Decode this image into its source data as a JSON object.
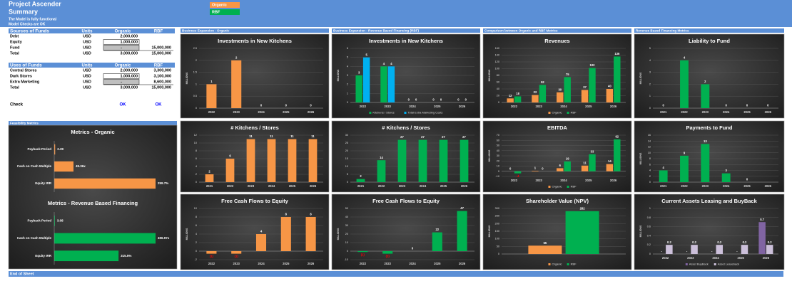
{
  "header": {
    "title": "Project Ascender",
    "subtitle": "Summary",
    "status": "The Model is fully functional",
    "checks": "Model Checks are OK"
  },
  "legend": [
    {
      "name": "Organic",
      "color": "#f79646"
    },
    {
      "name": "RBF",
      "color": "#00b050"
    }
  ],
  "sources": {
    "header": [
      "Sources of Funds",
      "Units",
      "Organic",
      "RBF"
    ],
    "rows": [
      [
        "Debt",
        "USD",
        "2,000,000",
        null
      ],
      [
        "Equity",
        "USD",
        "1,000,000",
        null
      ],
      [
        "Fund",
        "USD",
        "-",
        "15,000,000"
      ],
      [
        "Total",
        "USD",
        "3,000,000",
        "15,000,000"
      ]
    ]
  },
  "uses": {
    "header": [
      "Uses of Funds",
      "Units",
      "Organic",
      "RBF"
    ],
    "rows": [
      [
        "Central Stores",
        "USD",
        "2,000,000",
        "3,300,000"
      ],
      [
        "Dark Stores",
        "USD",
        "1,000,000",
        "3,100,000"
      ],
      [
        "Extra Marketing",
        "USD",
        "-",
        "8,600,000"
      ],
      [
        "Total",
        "USD",
        "3,000,000",
        "15,000,000"
      ]
    ]
  },
  "check": [
    "Check",
    "OK",
    "OK"
  ],
  "sections": [
    "Business Expansion - Organic",
    "Business Expansion - Revenue Based Financing (RBF)",
    "Comparison between Organic and RBF Metrics",
    "Revenue Based Financing Metrics",
    "Feasibility Metrics"
  ],
  "footer": "End of Sheet",
  "chart_data": [
    {
      "type": "bar",
      "title": "Investments in New Kitchens",
      "ylabel": "MILLIONS",
      "categories": [
        "2022",
        "2023",
        "2024",
        "2025",
        "2026"
      ],
      "values": [
        1,
        2,
        0,
        0,
        0
      ],
      "color": "#f79646",
      "ylim": [
        0,
        2.5
      ],
      "yticks": [
        0,
        0.5,
        1,
        1.5,
        2,
        2.5
      ],
      "grid": true
    },
    {
      "type": "bar",
      "title": "Investments in New Kitchens",
      "ylabel": "MILLIONS",
      "categories": [
        "2022",
        "2023",
        "2024",
        "2025",
        "2026"
      ],
      "series": [
        {
          "name": "Kitchens / Stores",
          "color": "#00b050",
          "values": [
            3,
            4,
            0,
            0,
            0
          ]
        },
        {
          "name": "Total Extra Marketing Costs",
          "color": "#00b0f0",
          "values": [
            5,
            4,
            0,
            0,
            0
          ]
        }
      ],
      "legend": "bottom",
      "ylim": [
        0,
        6
      ],
      "yticks": [
        0,
        1,
        2,
        3,
        4,
        5,
        6
      ],
      "grid": true
    },
    {
      "type": "bar",
      "title": "Revenues",
      "ylabel": "MILLIONS",
      "categories": [
        "2022",
        "2023",
        "2024",
        "2025",
        "2026"
      ],
      "series": [
        {
          "name": "Organic",
          "color": "#f79646",
          "values": [
            12,
            22,
            30,
            37,
            40
          ]
        },
        {
          "name": "RBF",
          "color": "#00b050",
          "values": [
            18,
            52,
            75,
            102,
            136
          ]
        }
      ],
      "legend": "bottom",
      "ylim": [
        0,
        160
      ],
      "yticks": [
        0,
        20,
        40,
        60,
        80,
        100,
        120,
        140,
        160
      ],
      "grid": true
    },
    {
      "type": "bar",
      "title": "Liability to Fund",
      "ylabel": "MILLIONS",
      "categories": [
        "2021",
        "2022",
        "2023",
        "2024",
        "2025",
        "2026"
      ],
      "values": [
        0,
        4,
        2,
        0,
        0,
        0
      ],
      "color": "#00b050",
      "ylim": [
        0,
        5
      ],
      "yticks": [
        0,
        1,
        2,
        3,
        4,
        5
      ],
      "grid": true
    },
    {
      "type": "bar",
      "title": "# Kitchens / Stores",
      "categories": [
        "2021",
        "2022",
        "2023",
        "2024",
        "2025",
        "2026"
      ],
      "values": [
        2,
        6,
        11,
        11,
        11,
        11
      ],
      "color": "#f79646",
      "ylim": [
        0,
        12
      ],
      "yticks": [
        0,
        2,
        4,
        6,
        8,
        10,
        12
      ],
      "grid": true
    },
    {
      "type": "bar",
      "title": "# Kitchens / Stores",
      "categories": [
        "2021",
        "2022",
        "2023",
        "2024",
        "2025",
        "2026"
      ],
      "values": [
        2,
        14,
        27,
        27,
        27,
        27
      ],
      "color": "#00b050",
      "ylim": [
        0,
        30
      ],
      "yticks": [
        0,
        5,
        10,
        15,
        20,
        25,
        30
      ],
      "grid": true
    },
    {
      "type": "bar",
      "title": "EBITDA",
      "ylabel": "MILLIONS",
      "categories": [
        "2022",
        "2023",
        "2024",
        "2025",
        "2026"
      ],
      "series": [
        {
          "name": "Organic",
          "color": "#f79646",
          "values": [
            0,
            1,
            6,
            11,
            14
          ]
        },
        {
          "name": "RBF",
          "color": "#00b050",
          "values": [
            -4,
            0,
            19,
            33,
            62
          ]
        }
      ],
      "legend": "bottom",
      "ylim": [
        -10,
        70
      ],
      "yticks": [
        -10,
        0,
        10,
        20,
        30,
        40,
        50,
        60,
        70
      ],
      "grid": true
    },
    {
      "type": "bar",
      "title": "Payments to Fund",
      "ylabel": "MILLIONS",
      "categories": [
        "2021",
        "2022",
        "2023",
        "2024",
        "2025",
        "2026"
      ],
      "values": [
        4,
        9,
        13,
        3,
        0,
        null
      ],
      "color": "#00b050",
      "ylim": [
        0,
        16
      ],
      "yticks": [
        0,
        2,
        4,
        6,
        8,
        10,
        12,
        14,
        16
      ],
      "grid": true
    },
    {
      "type": "bar",
      "title": "Free Cash Flows to Equity",
      "ylabel": "MILLIONS",
      "categories": [
        "2022",
        "2023",
        "2024",
        "2025",
        "2026"
      ],
      "values": [
        -0.6,
        -0.6,
        4,
        8,
        8
      ],
      "value_labels": [
        "(1)",
        "(1)",
        "4",
        "8",
        "8"
      ],
      "color": "#f79646",
      "ylim": [
        -2,
        10
      ],
      "yticks": [
        -2,
        0,
        2,
        4,
        6,
        8,
        10
      ],
      "grid": true
    },
    {
      "type": "bar",
      "title": "Free Cash Flows to Equity",
      "ylabel": "MILLIONS",
      "categories": [
        "2022",
        "2023",
        "2024",
        "2025",
        "2026"
      ],
      "values": [
        -1,
        -3,
        0,
        22,
        47
      ],
      "value_labels": [
        "(1)",
        "(3)",
        "0",
        "22",
        "47"
      ],
      "color": "#00b050",
      "ylim": [
        -10,
        50
      ],
      "yticks": [
        -10,
        0,
        10,
        20,
        30,
        40,
        50
      ],
      "grid": true
    },
    {
      "type": "bar",
      "title": "Shareholder Value (NPV)",
      "ylabel": "MILLIONS",
      "categories": [
        null
      ],
      "series": [
        {
          "name": "Organic",
          "color": "#f79646",
          "values": [
            55
          ]
        },
        {
          "name": "RBF",
          "color": "#00b050",
          "values": [
            282
          ]
        }
      ],
      "legend": "bottom",
      "ylim": [
        0,
        300
      ],
      "yticks": [
        0,
        50,
        100,
        150,
        200,
        250,
        300
      ],
      "grid": true
    },
    {
      "type": "bar",
      "title": "Current Assets Leasing and BuyBack",
      "ylabel": "MILLIONS",
      "categories": [
        "2022",
        "2023",
        "2024",
        "2025",
        "2026"
      ],
      "series": [
        {
          "name": "Asset BuyBack",
          "color": "#8064a2",
          "values": [
            0,
            0,
            0,
            0,
            0.7
          ],
          "value_labels": [
            "-",
            "-",
            "-",
            "-",
            "0.7"
          ]
        },
        {
          "name": "Asset Leaseback",
          "color": "#ccc0da",
          "values": [
            0.2,
            0.2,
            0.2,
            0.2,
            0.2
          ]
        }
      ],
      "legend": "bottom",
      "ylim": [
        0,
        1
      ],
      "yticks": [
        0,
        0.2,
        0.4,
        0.6,
        0.8,
        1
      ],
      "grid": true
    },
    {
      "type": "hbar",
      "title": "Metrics - Organic",
      "categories": [
        "Payback Period",
        "Cash on Cash Multiple",
        "Equity IRR"
      ],
      "values": [
        2.39,
        49.36,
        259.7
      ],
      "value_labels": [
        "2.39",
        "49.36x",
        "259.7%"
      ],
      "color": "#f79646"
    },
    {
      "type": "hbar",
      "title": "Metrics - Revenue Based Financing",
      "categories": [
        "Payback Period",
        "Cash on Cash Multiple",
        "Equity IRR"
      ],
      "values": [
        3.08,
        496.97,
        315.5
      ],
      "value_labels": [
        "3.08",
        "496.97x",
        "315.5%"
      ],
      "color": "#00b050"
    }
  ]
}
